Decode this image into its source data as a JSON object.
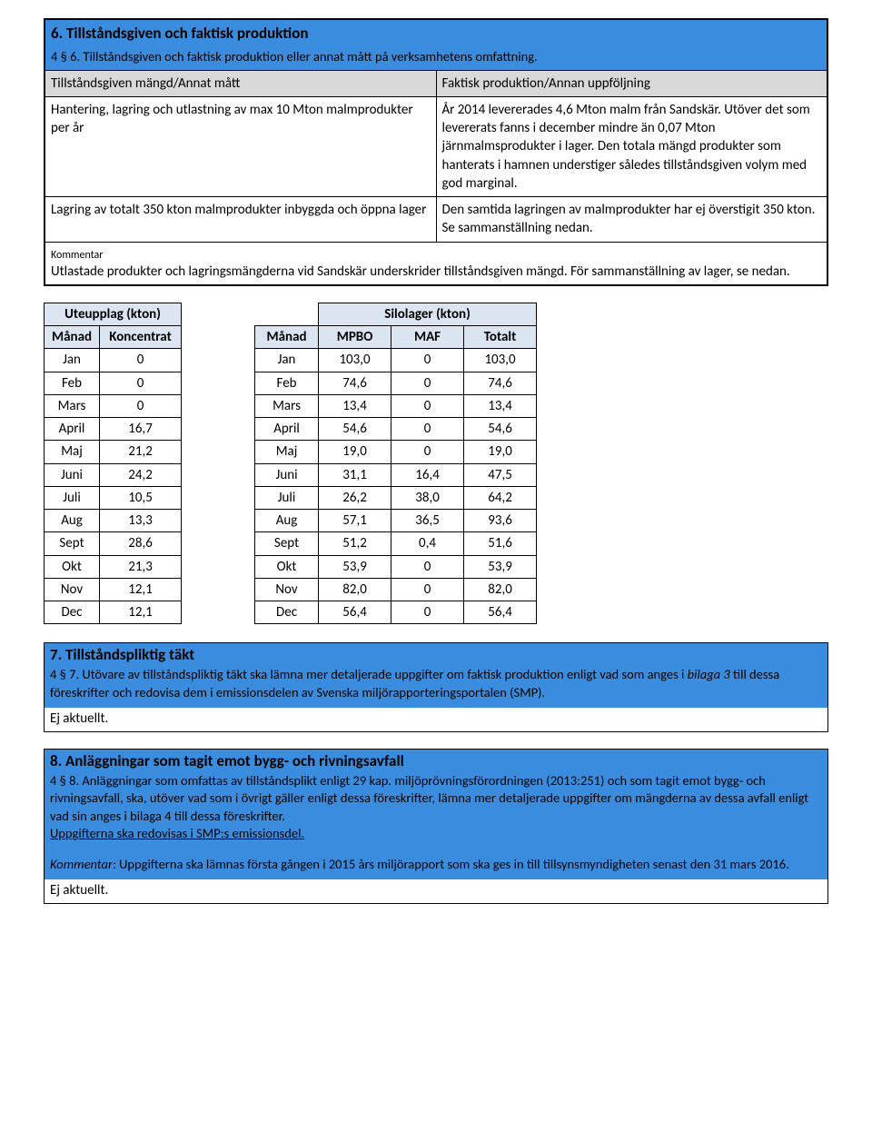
{
  "sec6": {
    "title": "6. Tillståndsgiven och faktisk produktion",
    "subtitle": "4 § 6. Tillståndsgiven och faktisk produktion eller annat mått på verksamhetens omfattning.",
    "col_left": "Tillståndsgiven mängd/Annat mått",
    "col_right": "Faktisk produktion/Annan uppföljning",
    "row1_left": "Hantering, lagring och utlastning av max 10 Mton malmprodukter per år",
    "row1_right": "År 2014 levererades 4,6 Mton malm från Sandskär. Utöver det som levererats fanns i december mindre än 0,07 Mton järnmalmsprodukter i lager. Den totala mängd produkter som hanterats i hamnen understiger således tillståndsgiven volym med god marginal.",
    "row2_left": "Lagring av totalt 350 kton malmprodukter inbyggda och öppna lager",
    "row2_right": "Den samtida lagringen av malmprodukter har ej överstigit 350 kton. Se sammanställning nedan.",
    "kommentar_label": "Kommentar",
    "kommentar_text": "Utlastade produkter och lagringsmängderna vid Sandskär underskrider tillståndsgiven mängd. För sammanställning av lager, se nedan."
  },
  "tableA": {
    "title": "Uteupplag (kton)",
    "col1": "Månad",
    "col2": "Koncentrat",
    "rows": [
      {
        "m": "Jan",
        "v": "0"
      },
      {
        "m": "Feb",
        "v": "0"
      },
      {
        "m": "Mars",
        "v": "0"
      },
      {
        "m": "April",
        "v": "16,7"
      },
      {
        "m": "Maj",
        "v": "21,2"
      },
      {
        "m": "Juni",
        "v": "24,2"
      },
      {
        "m": "Juli",
        "v": "10,5"
      },
      {
        "m": "Aug",
        "v": "13,3"
      },
      {
        "m": "Sept",
        "v": "28,6"
      },
      {
        "m": "Okt",
        "v": "21,3"
      },
      {
        "m": "Nov",
        "v": "12,1"
      },
      {
        "m": "Dec",
        "v": "12,1"
      }
    ]
  },
  "tableB": {
    "title": "Silolager (kton)",
    "col1": "Månad",
    "col2": "MPBO",
    "col3": "MAF",
    "col4": "Totalt",
    "rows": [
      {
        "m": "Jan",
        "a": "103,0",
        "b": "0",
        "c": "103,0"
      },
      {
        "m": "Feb",
        "a": "74,6",
        "b": "0",
        "c": "74,6"
      },
      {
        "m": "Mars",
        "a": "13,4",
        "b": "0",
        "c": "13,4"
      },
      {
        "m": "April",
        "a": "54,6",
        "b": "0",
        "c": "54,6"
      },
      {
        "m": "Maj",
        "a": "19,0",
        "b": "0",
        "c": "19,0"
      },
      {
        "m": "Juni",
        "a": "31,1",
        "b": "16,4",
        "c": "47,5"
      },
      {
        "m": "Juli",
        "a": "26,2",
        "b": "38,0",
        "c": "64,2"
      },
      {
        "m": "Aug",
        "a": "57,1",
        "b": "36,5",
        "c": "93,6"
      },
      {
        "m": "Sept",
        "a": "51,2",
        "b": "0,4",
        "c": "51,6"
      },
      {
        "m": "Okt",
        "a": "53,9",
        "b": "0",
        "c": "53,9"
      },
      {
        "m": "Nov",
        "a": "82,0",
        "b": "0",
        "c": "82,0"
      },
      {
        "m": "Dec",
        "a": "56,4",
        "b": "0",
        "c": "56,4"
      }
    ]
  },
  "sec7": {
    "title": "7. Tillståndspliktig täkt",
    "body_a": "4 § 7. Utövare av tillståndspliktig täkt ska lämna mer detaljerade uppgifter om faktisk produktion enligt vad som anges i ",
    "body_b_ital": "bilaga 3",
    "body_c": " till dessa föreskrifter och redovisa dem i emissionsdelen av Svenska miljörapporteringsportalen (SMP).",
    "tail": "Ej aktuellt."
  },
  "sec8": {
    "title": "8. Anläggningar som tagit emot bygg- och rivningsavfall",
    "body1": "4 § 8. Anläggningar som omfattas av tillståndsplikt enligt 29 kap. miljöprövningsförordningen (2013:251) och som tagit emot bygg- och rivningsavfall, ska, utöver vad som i övrigt gäller enligt dessa föreskrifter, lämna mer detaljerade uppgifter om mängderna av dessa avfall enligt vad sin anges i bilaga 4 till dessa föreskrifter.",
    "body2_link": "Uppgifterna ska redovisas i SMP:s emissionsdel.",
    "comment_label": "Kommentar",
    "comment_text": ": Uppgifterna ska lämnas första gången i 2015 års miljörapport som ska ges in till tillsynsmyndigheten senast den 31 mars 2016.",
    "tail": "Ej aktuellt."
  }
}
